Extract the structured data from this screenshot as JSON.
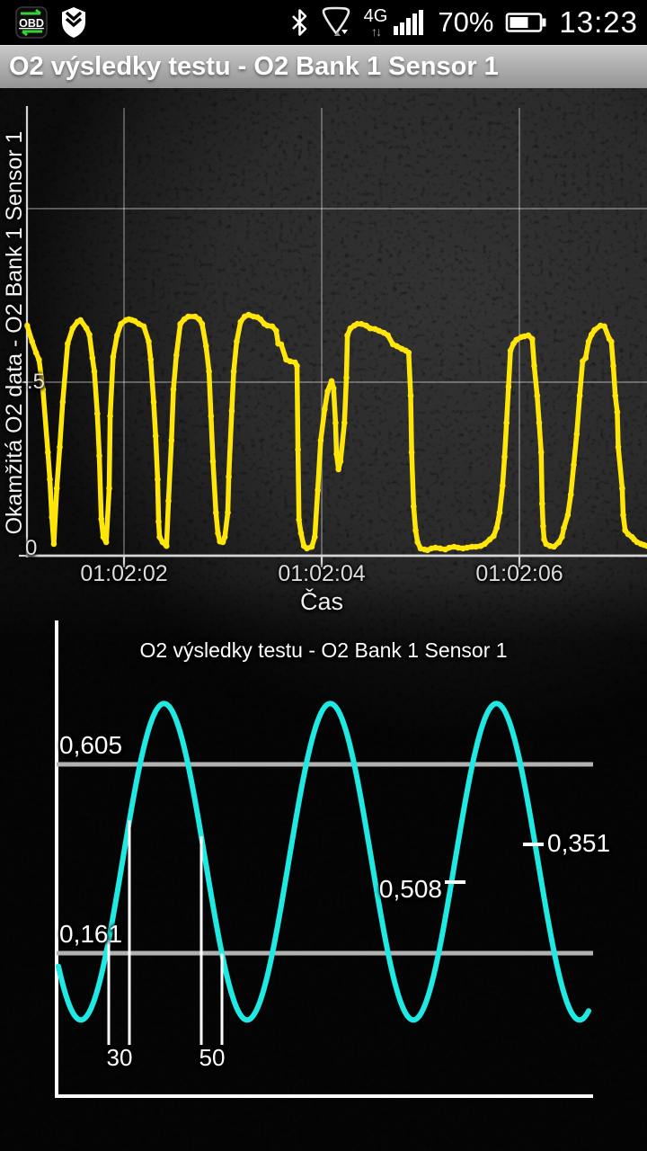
{
  "status_bar": {
    "obd_label": "OBD",
    "network": "4G",
    "net_arrows": "↑↓",
    "battery_percent": "70%",
    "time": "13:23"
  },
  "title_bar": {
    "title": "O2 výsledky testu - O2 Bank 1 Sensor 1"
  },
  "colors": {
    "top_line": "#ffe608",
    "bottom_line": "#1fe9e3",
    "reference_line": "#b2b2b2",
    "axis_top": "#d6d6d6",
    "axis_bottom": "#ffffff"
  },
  "chart_data": [
    {
      "type": "line",
      "xlabel": "Čas",
      "ylabel": "Okamžitá O2 data - O2 Bank 1 Sensor 1",
      "x_tick_labels": [
        "01:02:02",
        "01:02:04",
        "01:02:06"
      ],
      "y_tick_labels": [
        ".5",
        "0"
      ],
      "ylim": [
        0,
        1.29
      ],
      "x_window": [
        "01:02:01.0",
        "01:02:07.3"
      ],
      "grid": true,
      "series": [
        {
          "name": "Okamžitá O2 data (V)",
          "color": "#ffe608",
          "marker": "dot",
          "points": [
            [
              61.02,
              0.663
            ],
            [
              61.07,
              0.617
            ],
            [
              61.11,
              0.585
            ],
            [
              61.14,
              0.565
            ],
            [
              61.18,
              0.479
            ],
            [
              61.23,
              0.298
            ],
            [
              61.25,
              0.22
            ],
            [
              61.27,
              0.111
            ],
            [
              61.29,
              0.034
            ],
            [
              61.32,
              0.194
            ],
            [
              61.35,
              0.313
            ],
            [
              61.38,
              0.443
            ],
            [
              61.43,
              0.611
            ],
            [
              61.48,
              0.655
            ],
            [
              61.53,
              0.674
            ],
            [
              61.56,
              0.679
            ],
            [
              61.62,
              0.655
            ],
            [
              61.65,
              0.637
            ],
            [
              61.68,
              0.57
            ],
            [
              61.7,
              0.531
            ],
            [
              61.73,
              0.409
            ],
            [
              61.75,
              0.288
            ],
            [
              61.77,
              0.106
            ],
            [
              61.79,
              0.054
            ],
            [
              61.82,
              0.039
            ],
            [
              61.85,
              0.194
            ],
            [
              61.86,
              0.402
            ],
            [
              61.89,
              0.573
            ],
            [
              61.93,
              0.635
            ],
            [
              61.97,
              0.668
            ],
            [
              62.02,
              0.679
            ],
            [
              62.05,
              0.681
            ],
            [
              62.08,
              0.679
            ],
            [
              62.11,
              0.676
            ],
            [
              62.15,
              0.668
            ],
            [
              62.2,
              0.661
            ],
            [
              62.25,
              0.617
            ],
            [
              62.27,
              0.565
            ],
            [
              62.3,
              0.443
            ],
            [
              62.32,
              0.345
            ],
            [
              62.34,
              0.22
            ],
            [
              62.35,
              0.098
            ],
            [
              62.36,
              0.054
            ],
            [
              62.39,
              0.039
            ],
            [
              62.43,
              0.028
            ],
            [
              62.45,
              0.158
            ],
            [
              62.48,
              0.332
            ],
            [
              62.5,
              0.479
            ],
            [
              62.53,
              0.578
            ],
            [
              62.57,
              0.668
            ],
            [
              62.61,
              0.681
            ],
            [
              62.65,
              0.689
            ],
            [
              62.72,
              0.689
            ],
            [
              62.76,
              0.681
            ],
            [
              62.79,
              0.668
            ],
            [
              62.83,
              0.604
            ],
            [
              62.86,
              0.531
            ],
            [
              62.88,
              0.402
            ],
            [
              62.9,
              0.272
            ],
            [
              62.93,
              0.124
            ],
            [
              62.95,
              0.065
            ],
            [
              62.97,
              0.041
            ],
            [
              63.0,
              0.039
            ],
            [
              63.02,
              0.054
            ],
            [
              63.05,
              0.124
            ],
            [
              63.06,
              0.228
            ],
            [
              63.09,
              0.417
            ],
            [
              63.11,
              0.531
            ],
            [
              63.14,
              0.617
            ],
            [
              63.18,
              0.674
            ],
            [
              63.22,
              0.689
            ],
            [
              63.26,
              0.694
            ],
            [
              63.31,
              0.689
            ],
            [
              63.35,
              0.687
            ],
            [
              63.38,
              0.681
            ],
            [
              63.42,
              0.668
            ],
            [
              63.45,
              0.663
            ],
            [
              63.5,
              0.661
            ],
            [
              63.54,
              0.648
            ],
            [
              63.56,
              0.611
            ],
            [
              63.59,
              0.609
            ],
            [
              63.64,
              0.565
            ],
            [
              63.68,
              0.56
            ],
            [
              63.73,
              0.557
            ],
            [
              63.75,
              0.547
            ],
            [
              63.76,
              0.306
            ],
            [
              63.77,
              0.104
            ],
            [
              63.79,
              0.065
            ],
            [
              63.82,
              0.028
            ],
            [
              63.85,
              0.021
            ],
            [
              63.9,
              0.026
            ],
            [
              63.93,
              0.054
            ],
            [
              63.96,
              0.189
            ],
            [
              63.99,
              0.332
            ],
            [
              64.03,
              0.422
            ],
            [
              64.06,
              0.474
            ],
            [
              64.1,
              0.503
            ],
            [
              64.12,
              0.482
            ],
            [
              64.14,
              0.383
            ],
            [
              64.15,
              0.293
            ],
            [
              64.17,
              0.249
            ],
            [
              64.19,
              0.272
            ],
            [
              64.23,
              0.383
            ],
            [
              64.25,
              0.513
            ],
            [
              64.26,
              0.635
            ],
            [
              64.29,
              0.655
            ],
            [
              64.33,
              0.663
            ],
            [
              64.36,
              0.668
            ],
            [
              64.4,
              0.668
            ],
            [
              64.45,
              0.663
            ],
            [
              64.49,
              0.655
            ],
            [
              64.54,
              0.653
            ],
            [
              64.58,
              0.648
            ],
            [
              64.63,
              0.642
            ],
            [
              64.67,
              0.635
            ],
            [
              64.72,
              0.609
            ],
            [
              64.76,
              0.604
            ],
            [
              64.81,
              0.596
            ],
            [
              64.85,
              0.591
            ],
            [
              64.88,
              0.585
            ],
            [
              64.9,
              0.461
            ],
            [
              64.91,
              0.298
            ],
            [
              64.93,
              0.142
            ],
            [
              64.95,
              0.073
            ],
            [
              64.97,
              0.039
            ],
            [
              65.0,
              0.021
            ],
            [
              65.04,
              0.018
            ],
            [
              65.07,
              0.016
            ],
            [
              65.11,
              0.021
            ],
            [
              65.15,
              0.023
            ],
            [
              65.2,
              0.021
            ],
            [
              65.25,
              0.018
            ],
            [
              65.29,
              0.023
            ],
            [
              65.34,
              0.026
            ],
            [
              65.38,
              0.023
            ],
            [
              65.43,
              0.021
            ],
            [
              65.47,
              0.023
            ],
            [
              65.52,
              0.026
            ],
            [
              65.56,
              0.026
            ],
            [
              65.61,
              0.028
            ],
            [
              65.65,
              0.034
            ],
            [
              65.7,
              0.047
            ],
            [
              65.74,
              0.057
            ],
            [
              65.77,
              0.08
            ],
            [
              65.8,
              0.124
            ],
            [
              65.83,
              0.202
            ],
            [
              65.85,
              0.285
            ],
            [
              65.87,
              0.383
            ],
            [
              65.89,
              0.487
            ],
            [
              65.91,
              0.591
            ],
            [
              65.94,
              0.611
            ],
            [
              65.97,
              0.622
            ],
            [
              66.02,
              0.63
            ],
            [
              66.05,
              0.632
            ],
            [
              66.09,
              0.635
            ],
            [
              66.13,
              0.624
            ],
            [
              66.15,
              0.547
            ],
            [
              66.18,
              0.461
            ],
            [
              66.2,
              0.383
            ],
            [
              66.22,
              0.298
            ],
            [
              66.23,
              0.15
            ],
            [
              66.24,
              0.085
            ],
            [
              66.25,
              0.047
            ],
            [
              66.27,
              0.034
            ],
            [
              66.31,
              0.028
            ],
            [
              66.35,
              0.026
            ],
            [
              66.4,
              0.039
            ],
            [
              66.43,
              0.054
            ],
            [
              66.45,
              0.08
            ],
            [
              66.49,
              0.117
            ],
            [
              66.52,
              0.176
            ],
            [
              66.55,
              0.262
            ],
            [
              66.58,
              0.35
            ],
            [
              66.61,
              0.461
            ],
            [
              66.64,
              0.56
            ],
            [
              66.67,
              0.57
            ],
            [
              66.7,
              0.617
            ],
            [
              66.73,
              0.637
            ],
            [
              66.76,
              0.65
            ],
            [
              66.82,
              0.663
            ],
            [
              66.86,
              0.661
            ],
            [
              66.91,
              0.624
            ],
            [
              66.93,
              0.617
            ],
            [
              66.95,
              0.547
            ],
            [
              66.97,
              0.461
            ],
            [
              66.99,
              0.414
            ],
            [
              67.0,
              0.313
            ],
            [
              67.04,
              0.194
            ],
            [
              67.05,
              0.117
            ],
            [
              67.07,
              0.073
            ],
            [
              67.1,
              0.062
            ],
            [
              67.14,
              0.054
            ],
            [
              67.16,
              0.047
            ],
            [
              67.19,
              0.039
            ],
            [
              67.23,
              0.034
            ],
            [
              67.26,
              0.031
            ],
            [
              67.29,
              0.028
            ]
          ]
        }
      ]
    },
    {
      "type": "line",
      "title": "O2 výsledky testu - O2 Bank 1 Sensor 1",
      "wave": {
        "shape": "sine",
        "color": "#1fe9e3",
        "v_min": 0.004,
        "v_max": 0.748,
        "cycles_shown": 3.19
      },
      "reference_lines": [
        {
          "label": "0,605",
          "value": 0.605
        },
        {
          "label": "0,161",
          "value": 0.161
        }
      ],
      "interval_markers": [
        {
          "label": "30"
        },
        {
          "label": "50"
        }
      ],
      "point_annotations": [
        {
          "label": "0,508",
          "value": 0.508
        },
        {
          "label": "0,351",
          "value": 0.351
        }
      ]
    }
  ]
}
